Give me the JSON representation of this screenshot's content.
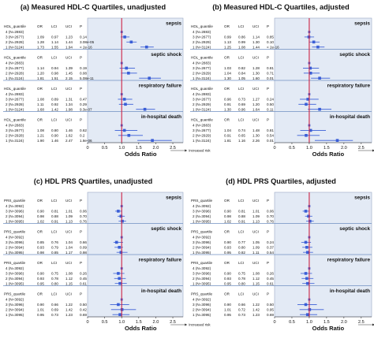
{
  "figure": {
    "colors": {
      "plot_bg": "#e3eaf5",
      "panel_border": "#9aa8c4",
      "separator": "#6f8fc0",
      "ref_line": "#cc2244",
      "point": "#3a5ed6",
      "ci_line": "#3a5ed6"
    }
  },
  "chart_data": [
    {
      "type": "forest",
      "title": "(a) Measured HDL-C Quartiles, unadjusted",
      "xlabel": "Odds Ratio",
      "x_ticks": [
        "0",
        "0.5",
        "1.0",
        "1.5",
        "2.0",
        "2.5"
      ],
      "xlim": [
        0,
        2.8
      ],
      "ref_x": 1.0,
      "arrow_label": "Increased risk",
      "sections": [
        {
          "outcome": "sepsis",
          "header": [
            "HDL_quantile",
            "OR",
            "LCI",
            "UCI",
            "P"
          ],
          "rows": [
            {
              "label": "4 (N=2883)",
              "or": 1.0,
              "lci": null,
              "uci": null,
              "p": ""
            },
            {
              "label": "3 (N=2677)",
              "or": 1.09,
              "lci": 0.97,
              "uci": 1.23,
              "p": "0.14"
            },
            {
              "label": "2 (N=2928)",
              "or": 1.28,
              "lci": 1.14,
              "uci": 1.44,
              "p": "3.08e-05"
            },
            {
              "label": "1 (N=3124)",
              "or": 1.73,
              "lci": 1.55,
              "uci": 1.94,
              "p": "< 2e-16"
            }
          ]
        },
        {
          "outcome": "septic shock",
          "header": [
            "HDL_quantile",
            "OR",
            "LCI",
            "UCI",
            "P"
          ],
          "rows": [
            {
              "label": "4 (N=2883)",
              "or": 1.0,
              "lci": null,
              "uci": null,
              "p": ""
            },
            {
              "label": "3 (N=2677)",
              "or": 1.14,
              "lci": 0.94,
              "uci": 1.39,
              "p": "0.19"
            },
            {
              "label": "2 (N=2928)",
              "or": 1.2,
              "lci": 0.98,
              "uci": 1.45,
              "p": "0.08"
            },
            {
              "label": "1 (N=3124)",
              "or": 1.81,
              "lci": 1.51,
              "uci": 2.15,
              "p": "5.08e-11"
            }
          ]
        },
        {
          "outcome": "respiratory failure",
          "header": [
            "HDL_quantile",
            "OR",
            "LCI",
            "UCI",
            "P"
          ],
          "rows": [
            {
              "label": "4 (N=2883)",
              "or": 1.0,
              "lci": null,
              "uci": null,
              "p": ""
            },
            {
              "label": "3 (N=2677)",
              "or": 1.08,
              "lci": 0.89,
              "uci": 1.31,
              "p": "0.47"
            },
            {
              "label": "2 (N=2928)",
              "or": 1.11,
              "lci": 0.92,
              "uci": 1.34,
              "p": "0.29"
            },
            {
              "label": "1 (N=3124)",
              "or": 1.68,
              "lci": 1.42,
              "uci": 1.98,
              "p": "9.3e-07"
            }
          ]
        },
        {
          "outcome": "in-hospital death",
          "header": [
            "HDL_quantile",
            "OR",
            "LCI",
            "UCI",
            "P"
          ],
          "rows": [
            {
              "label": "4 (N=2883)",
              "or": 1.0,
              "lci": null,
              "uci": null,
              "p": ""
            },
            {
              "label": "3 (N=2677)",
              "or": 1.08,
              "lci": 0.8,
              "uci": 1.46,
              "p": "0.62"
            },
            {
              "label": "2 (N=2928)",
              "or": 1.21,
              "lci": 0.9,
              "uci": 1.62,
              "p": "0.2"
            },
            {
              "label": "1 (N=3124)",
              "or": 1.9,
              "lci": 1.46,
              "uci": 2.47,
              "p": "1.8e-06"
            }
          ]
        }
      ]
    },
    {
      "type": "forest",
      "title": "(b) Measured HDL-C Quartiles, adjusted",
      "xlabel": "Odds Ratio",
      "x_ticks": [
        "0",
        "0.5",
        "1.0",
        "1.5",
        "2.0",
        "2.5"
      ],
      "xlim": [
        0,
        2.8
      ],
      "ref_x": 1.0,
      "arrow_label": "Increased risk",
      "sections": [
        {
          "outcome": "sepsis",
          "header": [
            "HDL_quantile",
            "OR",
            "LCI",
            "UCI",
            "P"
          ],
          "rows": [
            {
              "label": "4 (N=2883)",
              "or": 1.0,
              "lci": null,
              "uci": null,
              "p": ""
            },
            {
              "label": "3 (N=2677)",
              "or": 0.99,
              "lci": 0.86,
              "uci": 1.14,
              "p": "0.85"
            },
            {
              "label": "2 (N=2929)",
              "or": 1.13,
              "lci": 0.99,
              "uci": 1.3,
              "p": "0.10"
            },
            {
              "label": "1 (N=3124)",
              "or": 1.25,
              "lci": 1.08,
              "uci": 1.44,
              "p": "< 2e-16"
            }
          ]
        },
        {
          "outcome": "septic shock",
          "header": [
            "HDL_quantile",
            "OR",
            "LCI",
            "UCI",
            "P"
          ],
          "rows": [
            {
              "label": "4 (N=2883)",
              "or": 1.0,
              "lci": null,
              "uci": null,
              "p": ""
            },
            {
              "label": "3 (N=2677)",
              "or": 1.03,
              "lci": 0.82,
              "uci": 1.28,
              "p": "0.81"
            },
            {
              "label": "2 (N=2929)",
              "or": 1.04,
              "lci": 0.84,
              "uci": 1.3,
              "p": "0.71"
            },
            {
              "label": "1 (N=3124)",
              "or": 1.3,
              "lci": 1.05,
              "uci": 1.6,
              "p": "0.01"
            }
          ]
        },
        {
          "outcome": "respiratory failure",
          "header": [
            "HDL_quantile",
            "OR",
            "LCI",
            "UCI",
            "P"
          ],
          "rows": [
            {
              "label": "4 (N=2883)",
              "or": 1.0,
              "lci": null,
              "uci": null,
              "p": ""
            },
            {
              "label": "3 (N=2677)",
              "or": 0.96,
              "lci": 0.73,
              "uci": 1.27,
              "p": "0.24"
            },
            {
              "label": "2 (N=2929)",
              "or": 0.91,
              "lci": 0.69,
              "uci": 1.2,
              "p": "0.50"
            },
            {
              "label": "1 (N=3124)",
              "or": 1.3,
              "lci": 0.96,
              "uci": 1.64,
              "p": "0.11"
            }
          ]
        },
        {
          "outcome": "in-hospital death",
          "header": [
            "HDL_quantile",
            "OR",
            "LCI",
            "UCI",
            "P"
          ],
          "rows": [
            {
              "label": "4 (N=2883)",
              "or": 1.0,
              "lci": null,
              "uci": null,
              "p": ""
            },
            {
              "label": "3 (N=2677)",
              "or": 1.04,
              "lci": 0.74,
              "uci": 1.48,
              "p": "0.81"
            },
            {
              "label": "2 (N=2929)",
              "or": 0.91,
              "lci": 0.65,
              "uci": 1.3,
              "p": "0.54"
            },
            {
              "label": "1 (N=3124)",
              "or": 1.81,
              "lci": 1.16,
              "uci": 2.26,
              "p": "0.01"
            }
          ]
        }
      ]
    },
    {
      "type": "forest",
      "title": "(c) HDL PRS Quartiles, unadjusted",
      "xlabel": "Odds Ratio",
      "x_ticks": [
        "0",
        "0.5",
        "1.0",
        "1.5",
        "2.0",
        "2.5"
      ],
      "xlim": [
        0,
        2.8
      ],
      "ref_x": 1.0,
      "arrow_label": "Increased risk",
      "sections": [
        {
          "outcome": "sepsis",
          "header": [
            "PRS_quartile",
            "OR",
            "LCI",
            "UCI",
            "P"
          ],
          "rows": [
            {
              "label": "4 (N=3092)",
              "or": 1.0,
              "lci": null,
              "uci": null,
              "p": ""
            },
            {
              "label": "3 (N=3096)",
              "or": 0.9,
              "lci": 0.81,
              "uci": 1.01,
              "p": "0.06"
            },
            {
              "label": "2 (N=3094)",
              "or": 0.98,
              "lci": 0.88,
              "uci": 1.09,
              "p": "0.70"
            },
            {
              "label": "1 (N=3095)",
              "or": 1.02,
              "lci": 0.91,
              "uci": 1.13,
              "p": "0.76"
            }
          ]
        },
        {
          "outcome": "septic shock",
          "header": [
            "PRS_quartile",
            "OR",
            "LCI",
            "UCI",
            "P"
          ],
          "rows": [
            {
              "label": "4 (N=3092)",
              "or": 1.0,
              "lci": null,
              "uci": null,
              "p": ""
            },
            {
              "label": "3 (N=3096)",
              "or": 0.85,
              "lci": 0.76,
              "uci": 1.04,
              "p": "0.66"
            },
            {
              "label": "2 (N=3094)",
              "or": 0.93,
              "lci": 0.79,
              "uci": 1.04,
              "p": "0.09"
            },
            {
              "label": "1 (N=3095)",
              "or": 0.98,
              "lci": 0.85,
              "uci": 1.17,
              "p": "0.98"
            }
          ]
        },
        {
          "outcome": "respiratory failure",
          "header": [
            "PRS_quartile",
            "OR",
            "LCI",
            "UCI",
            "P"
          ],
          "rows": [
            {
              "label": "4 (N=3092)",
              "or": 1.0,
              "lci": null,
              "uci": null,
              "p": ""
            },
            {
              "label": "3 (N=3096)",
              "or": 0.9,
              "lci": 0.75,
              "uci": 1.08,
              "p": "0.26"
            },
            {
              "label": "2 (N=3094)",
              "or": 0.93,
              "lci": 0.78,
              "uci": 1.12,
              "p": "0.45"
            },
            {
              "label": "1 (N=3095)",
              "or": 0.95,
              "lci": 0.8,
              "uci": 1.15,
              "p": "0.61"
            }
          ]
        },
        {
          "outcome": "in-hospital death",
          "header": [
            "PRS_quartile",
            "OR",
            "LCI",
            "UCI",
            "P"
          ],
          "rows": [
            {
              "label": "4 (N=3092)",
              "or": 1.0,
              "lci": null,
              "uci": null,
              "p": ""
            },
            {
              "label": "3 (N=3096)",
              "or": 0.9,
              "lci": 0.66,
              "uci": 1.22,
              "p": "0.50"
            },
            {
              "label": "2 (N=3094)",
              "or": 1.01,
              "lci": 0.69,
              "uci": 1.42,
              "p": "0.42"
            },
            {
              "label": "1 (N=3095)",
              "or": 0.95,
              "lci": 0.73,
              "uci": 1.23,
              "p": "0.69"
            }
          ]
        }
      ]
    },
    {
      "type": "forest",
      "title": "(d) HDL PRS Quartiles, adjusted",
      "xlabel": "Odds Ratio",
      "x_ticks": [
        "0",
        "0.5",
        "1.0",
        "1.5",
        "2.0",
        "2.5"
      ],
      "xlim": [
        0,
        2.8
      ],
      "ref_x": 1.0,
      "arrow_label": "Increased risk",
      "sections": [
        {
          "outcome": "sepsis",
          "header": [
            "PRS_quartile",
            "OR",
            "LCI",
            "UCI",
            "P"
          ],
          "rows": [
            {
              "label": "4 (N=3092)",
              "or": 1.0,
              "lci": null,
              "uci": null,
              "p": ""
            },
            {
              "label": "3 (N=3096)",
              "or": 0.9,
              "lci": 0.81,
              "uci": 1.01,
              "p": "0.06"
            },
            {
              "label": "2 (N=3094)",
              "or": 0.98,
              "lci": 0.88,
              "uci": 1.09,
              "p": "0.70"
            },
            {
              "label": "1 (N=3095)",
              "or": 1.02,
              "lci": 0.91,
              "uci": 1.13,
              "p": "0.76"
            }
          ]
        },
        {
          "outcome": "septic shock",
          "header": [
            "PRS_quartile",
            "OR",
            "LCI",
            "UCI",
            "P"
          ],
          "rows": [
            {
              "label": "4 (N=3092)",
              "or": 1.0,
              "lci": null,
              "uci": null,
              "p": ""
            },
            {
              "label": "3 (N=3096)",
              "or": 0.9,
              "lci": 0.77,
              "uci": 1.05,
              "p": "0.24"
            },
            {
              "label": "2 (N=3094)",
              "or": 0.93,
              "lci": 0.8,
              "uci": 1.09,
              "p": "0.37"
            },
            {
              "label": "1 (N=3095)",
              "or": 0.95,
              "lci": 0.82,
              "uci": 1.11,
              "p": "0.54"
            }
          ]
        },
        {
          "outcome": "respiratory failure",
          "header": [
            "PRS_quartile",
            "OR",
            "LCI",
            "UCI",
            "P"
          ],
          "rows": [
            {
              "label": "4 (N=3092)",
              "or": 1.0,
              "lci": null,
              "uci": null,
              "p": ""
            },
            {
              "label": "3 (N=3096)",
              "or": 0.9,
              "lci": 0.75,
              "uci": 1.08,
              "p": "0.26"
            },
            {
              "label": "2 (N=3094)",
              "or": 0.93,
              "lci": 0.78,
              "uci": 1.12,
              "p": "0.45"
            },
            {
              "label": "1 (N=3095)",
              "or": 0.95,
              "lci": 0.8,
              "uci": 1.15,
              "p": "0.61"
            }
          ]
        },
        {
          "outcome": "in-hospital death",
          "header": [
            "PRS_quartile",
            "OR",
            "LCI",
            "UCI",
            "P"
          ],
          "rows": [
            {
              "label": "4 (N=3092)",
              "or": 1.0,
              "lci": null,
              "uci": null,
              "p": ""
            },
            {
              "label": "3 (N=3096)",
              "or": 0.9,
              "lci": 0.66,
              "uci": 1.22,
              "p": "0.50"
            },
            {
              "label": "2 (N=3094)",
              "or": 1.01,
              "lci": 0.72,
              "uci": 1.42,
              "p": "0.95"
            },
            {
              "label": "1 (N=3095)",
              "or": 0.95,
              "lci": 0.73,
              "uci": 1.23,
              "p": "0.69"
            }
          ]
        }
      ]
    }
  ]
}
